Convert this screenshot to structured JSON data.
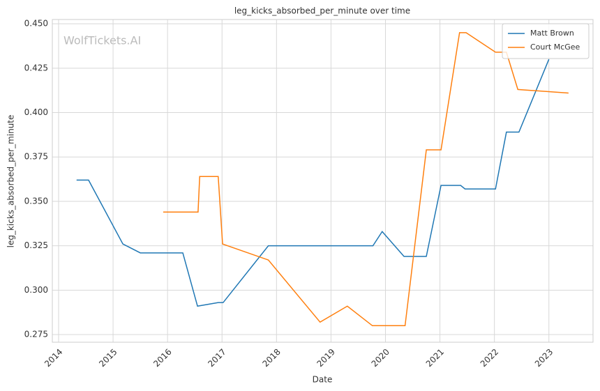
{
  "chart_data": {
    "type": "line",
    "title": "leg_kicks_absorbed_per_minute over time",
    "xlabel": "Date",
    "ylabel": "leg_kicks_absorbed_per_minute",
    "watermark": "WolfTickets.AI",
    "xlim": [
      2013.885,
      2023.81
    ],
    "xticks": [
      2014,
      2015,
      2016,
      2017,
      2018,
      2019,
      2020,
      2021,
      2022,
      2023
    ],
    "ylim": [
      0.2707,
      0.4524
    ],
    "yticks": [
      {
        "value": 0.275,
        "label": "0.275"
      },
      {
        "value": 0.3,
        "label": "0.300"
      },
      {
        "value": 0.325,
        "label": "0.325"
      },
      {
        "value": 0.35,
        "label": "0.350"
      },
      {
        "value": 0.375,
        "label": "0.375"
      },
      {
        "value": 0.4,
        "label": "0.400"
      },
      {
        "value": 0.425,
        "label": "0.425"
      },
      {
        "value": 0.45,
        "label": "0.450"
      }
    ],
    "grid": true,
    "legend": "upper right",
    "series": [
      {
        "name": "Matt Brown",
        "color": "#1f77b4",
        "x": [
          2014.33,
          2014.55,
          2015.18,
          2015.5,
          2016.28,
          2016.55,
          2016.93,
          2017.02,
          2017.85,
          2019.77,
          2019.94,
          2020.34,
          2020.75,
          2021.02,
          2021.38,
          2021.46,
          2022.02,
          2022.22,
          2022.45,
          2023.0
        ],
        "values": [
          0.362,
          0.362,
          0.326,
          0.321,
          0.321,
          0.291,
          0.293,
          0.293,
          0.325,
          0.325,
          0.333,
          0.319,
          0.319,
          0.359,
          0.359,
          0.357,
          0.357,
          0.389,
          0.389,
          0.43
        ]
      },
      {
        "name": "Court McGee",
        "color": "#ff7f0e",
        "x": [
          2015.92,
          2016.56,
          2016.59,
          2016.93,
          2017.01,
          2017.85,
          2018.8,
          2019.3,
          2019.76,
          2020.36,
          2020.75,
          2021.02,
          2021.36,
          2021.48,
          2022.02,
          2022.22,
          2022.43,
          2023.36
        ],
        "values": [
          0.344,
          0.344,
          0.364,
          0.364,
          0.326,
          0.317,
          0.282,
          0.291,
          0.28,
          0.28,
          0.379,
          0.379,
          0.445,
          0.445,
          0.434,
          0.434,
          0.413,
          0.411
        ]
      }
    ]
  }
}
